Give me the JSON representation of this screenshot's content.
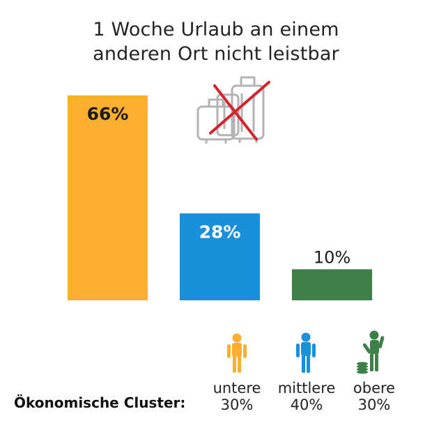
{
  "title_lines": [
    "1 Woche Urlaub an einem",
    "anderen Ort nicht leistbar"
  ],
  "axis_label": "Ökonomische Cluster:",
  "icons": [
    "suitcase-crossed-icon",
    "person-poor-icon",
    "person-middle-icon",
    "person-rich-icon"
  ],
  "chart_data": {
    "type": "bar",
    "title": "1 Woche Urlaub an einem anderen Ort nicht leistbar",
    "xlabel": "Ökonomische Cluster:",
    "ylabel": "",
    "ylim": [
      0,
      66
    ],
    "grid": false,
    "categories": [
      "untere",
      "mittlere",
      "obere"
    ],
    "category_shares": [
      "30%",
      "40%",
      "30%"
    ],
    "values": [
      66,
      28,
      10
    ],
    "value_labels": [
      "66%",
      "28%",
      "10%"
    ],
    "colors": [
      "#FBAF2E",
      "#1A8FDC",
      "#3F7F4A"
    ],
    "label_colors": [
      "#1a1a1a",
      "#ffffff",
      "#1a1a1a"
    ],
    "label_positions": [
      "inside",
      "inside",
      "above"
    ]
  }
}
